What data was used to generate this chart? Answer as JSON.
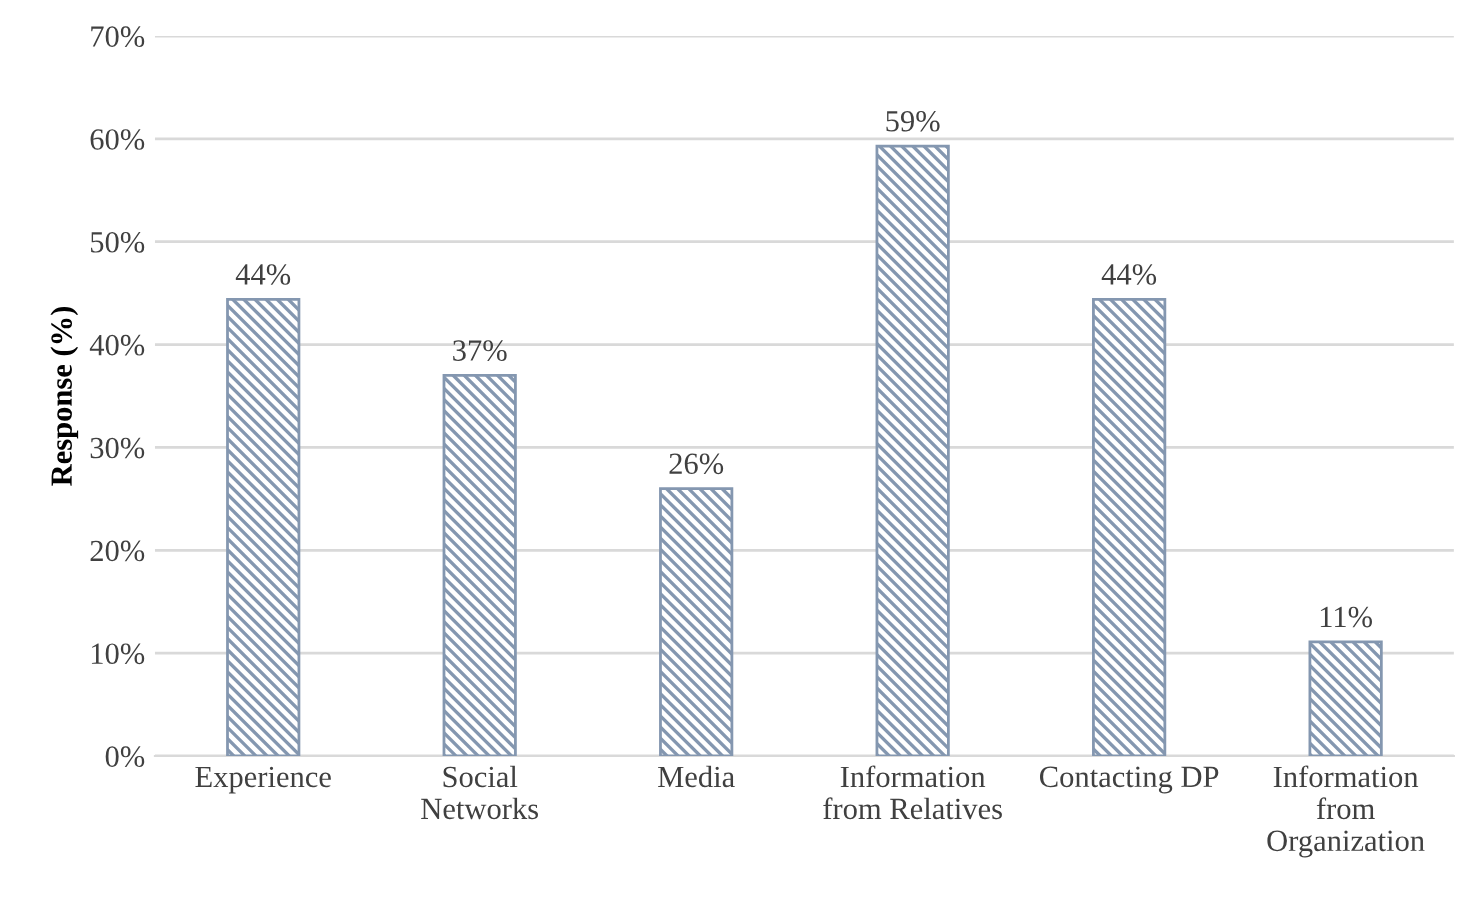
{
  "chart_data": {
    "type": "bar",
    "ylabel": "Response (%)",
    "categories": [
      "Experience",
      "Social\nNetworks",
      "Media",
      "Information\nfrom Relatives",
      "Contacting DP",
      "Information\nfrom\nOrganization"
    ],
    "values": [
      44.4,
      37,
      26,
      59.3,
      44.4,
      11.1
    ],
    "value_labels": [
      "44%",
      "37%",
      "26%",
      "59%",
      "44%",
      "11%"
    ],
    "color": "#8497b0",
    "ylim": [
      0,
      70
    ],
    "yticks": [
      {
        "value": 0,
        "label": "0%"
      },
      {
        "value": 10,
        "label": "10%"
      },
      {
        "value": 20,
        "label": "20%"
      },
      {
        "value": 30,
        "label": "30%"
      },
      {
        "value": 40,
        "label": "40%"
      },
      {
        "value": 50,
        "label": "50%"
      },
      {
        "value": 60,
        "label": "60%"
      },
      {
        "value": 70,
        "label": "70%"
      }
    ],
    "grid": "y",
    "legend": false
  }
}
